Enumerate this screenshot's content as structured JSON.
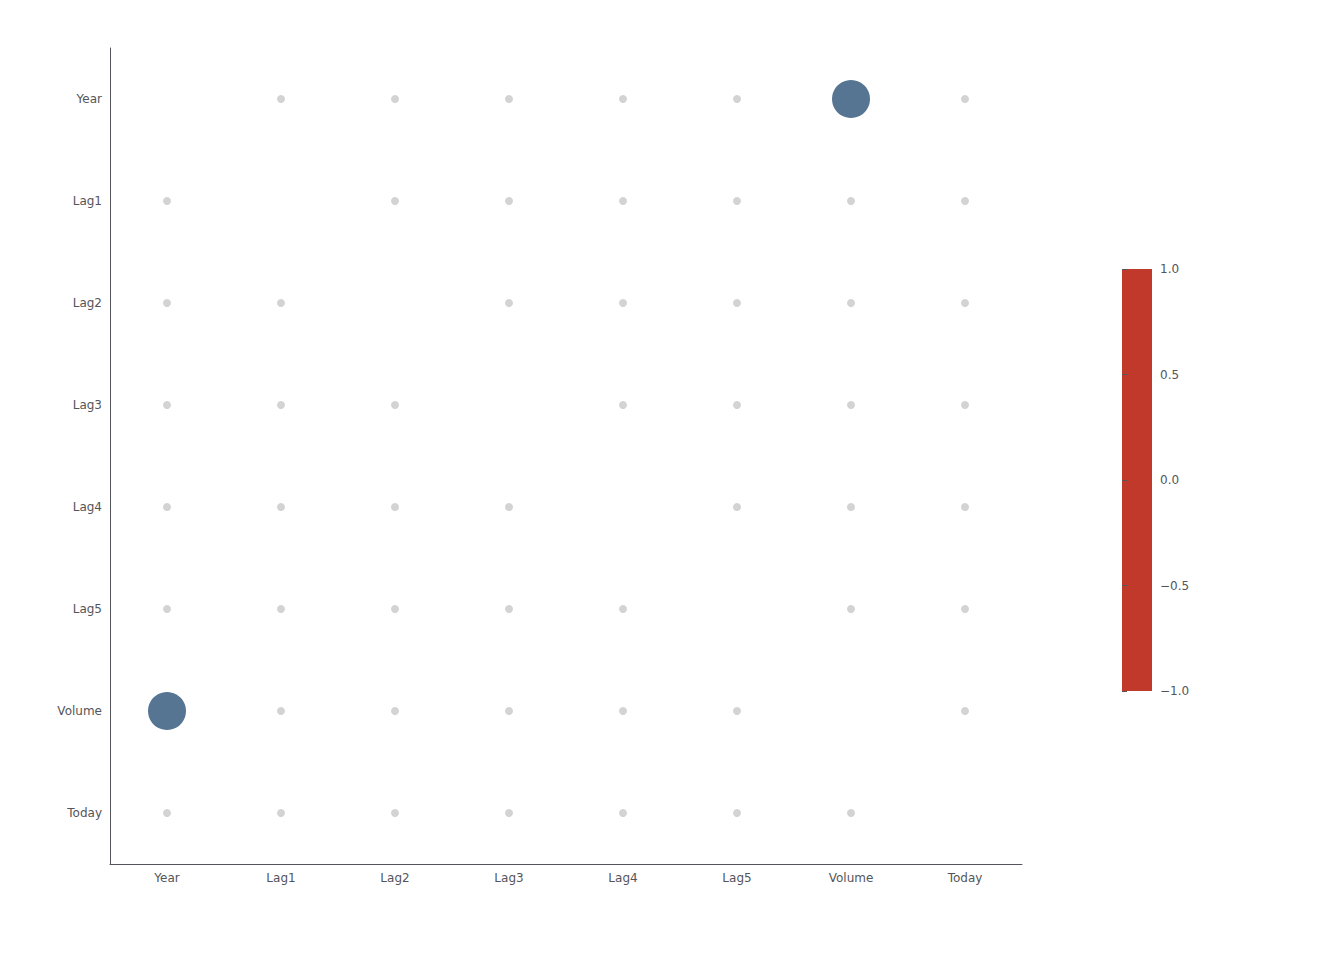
{
  "chart_data": {
    "type": "scatter",
    "x": [
      "Year",
      "Lag1",
      "Lag2",
      "Lag3",
      "Lag4",
      "Lag5",
      "Volume",
      "Today"
    ],
    "y": [
      "Today",
      "Volume",
      "Lag5",
      "Lag4",
      "Lag3",
      "Lag2",
      "Lag1",
      "Year"
    ],
    "cells": [
      [
        null,
        0.03,
        0.03,
        0.03,
        0.03,
        0.03,
        0.98,
        0.03
      ],
      [
        0.03,
        null,
        0.03,
        0.03,
        0.03,
        0.03,
        0.03,
        0.03
      ],
      [
        0.03,
        0.03,
        null,
        0.03,
        0.03,
        0.03,
        0.03,
        0.03
      ],
      [
        0.03,
        0.03,
        0.03,
        null,
        0.03,
        0.03,
        0.03,
        0.03
      ],
      [
        0.03,
        0.03,
        0.03,
        0.03,
        null,
        0.03,
        0.03,
        0.03
      ],
      [
        0.03,
        0.03,
        0.03,
        0.03,
        0.03,
        null,
        0.03,
        0.03
      ],
      [
        0.98,
        0.03,
        0.03,
        0.03,
        0.03,
        0.03,
        null,
        0.03
      ],
      [
        0.03,
        0.03,
        0.03,
        0.03,
        0.03,
        0.03,
        0.03,
        null
      ]
    ],
    "highlight_threshold": 0.9,
    "color": "#c8c8c8",
    "highlight_color": "#2a5278",
    "colorbar": {
      "range": [
        -1,
        1
      ],
      "ticks": [
        {
          "value": -1,
          "label": "−1.0"
        },
        {
          "value": -0.5,
          "label": "−0.5"
        },
        {
          "value": 0,
          "label": "0.0"
        },
        {
          "value": 0.5,
          "label": "0.5"
        },
        {
          "value": 1,
          "label": "1.0"
        }
      ],
      "colors": [
        "#c0392b",
        "#000000",
        "#5ba3d0"
      ]
    },
    "grid": false
  }
}
